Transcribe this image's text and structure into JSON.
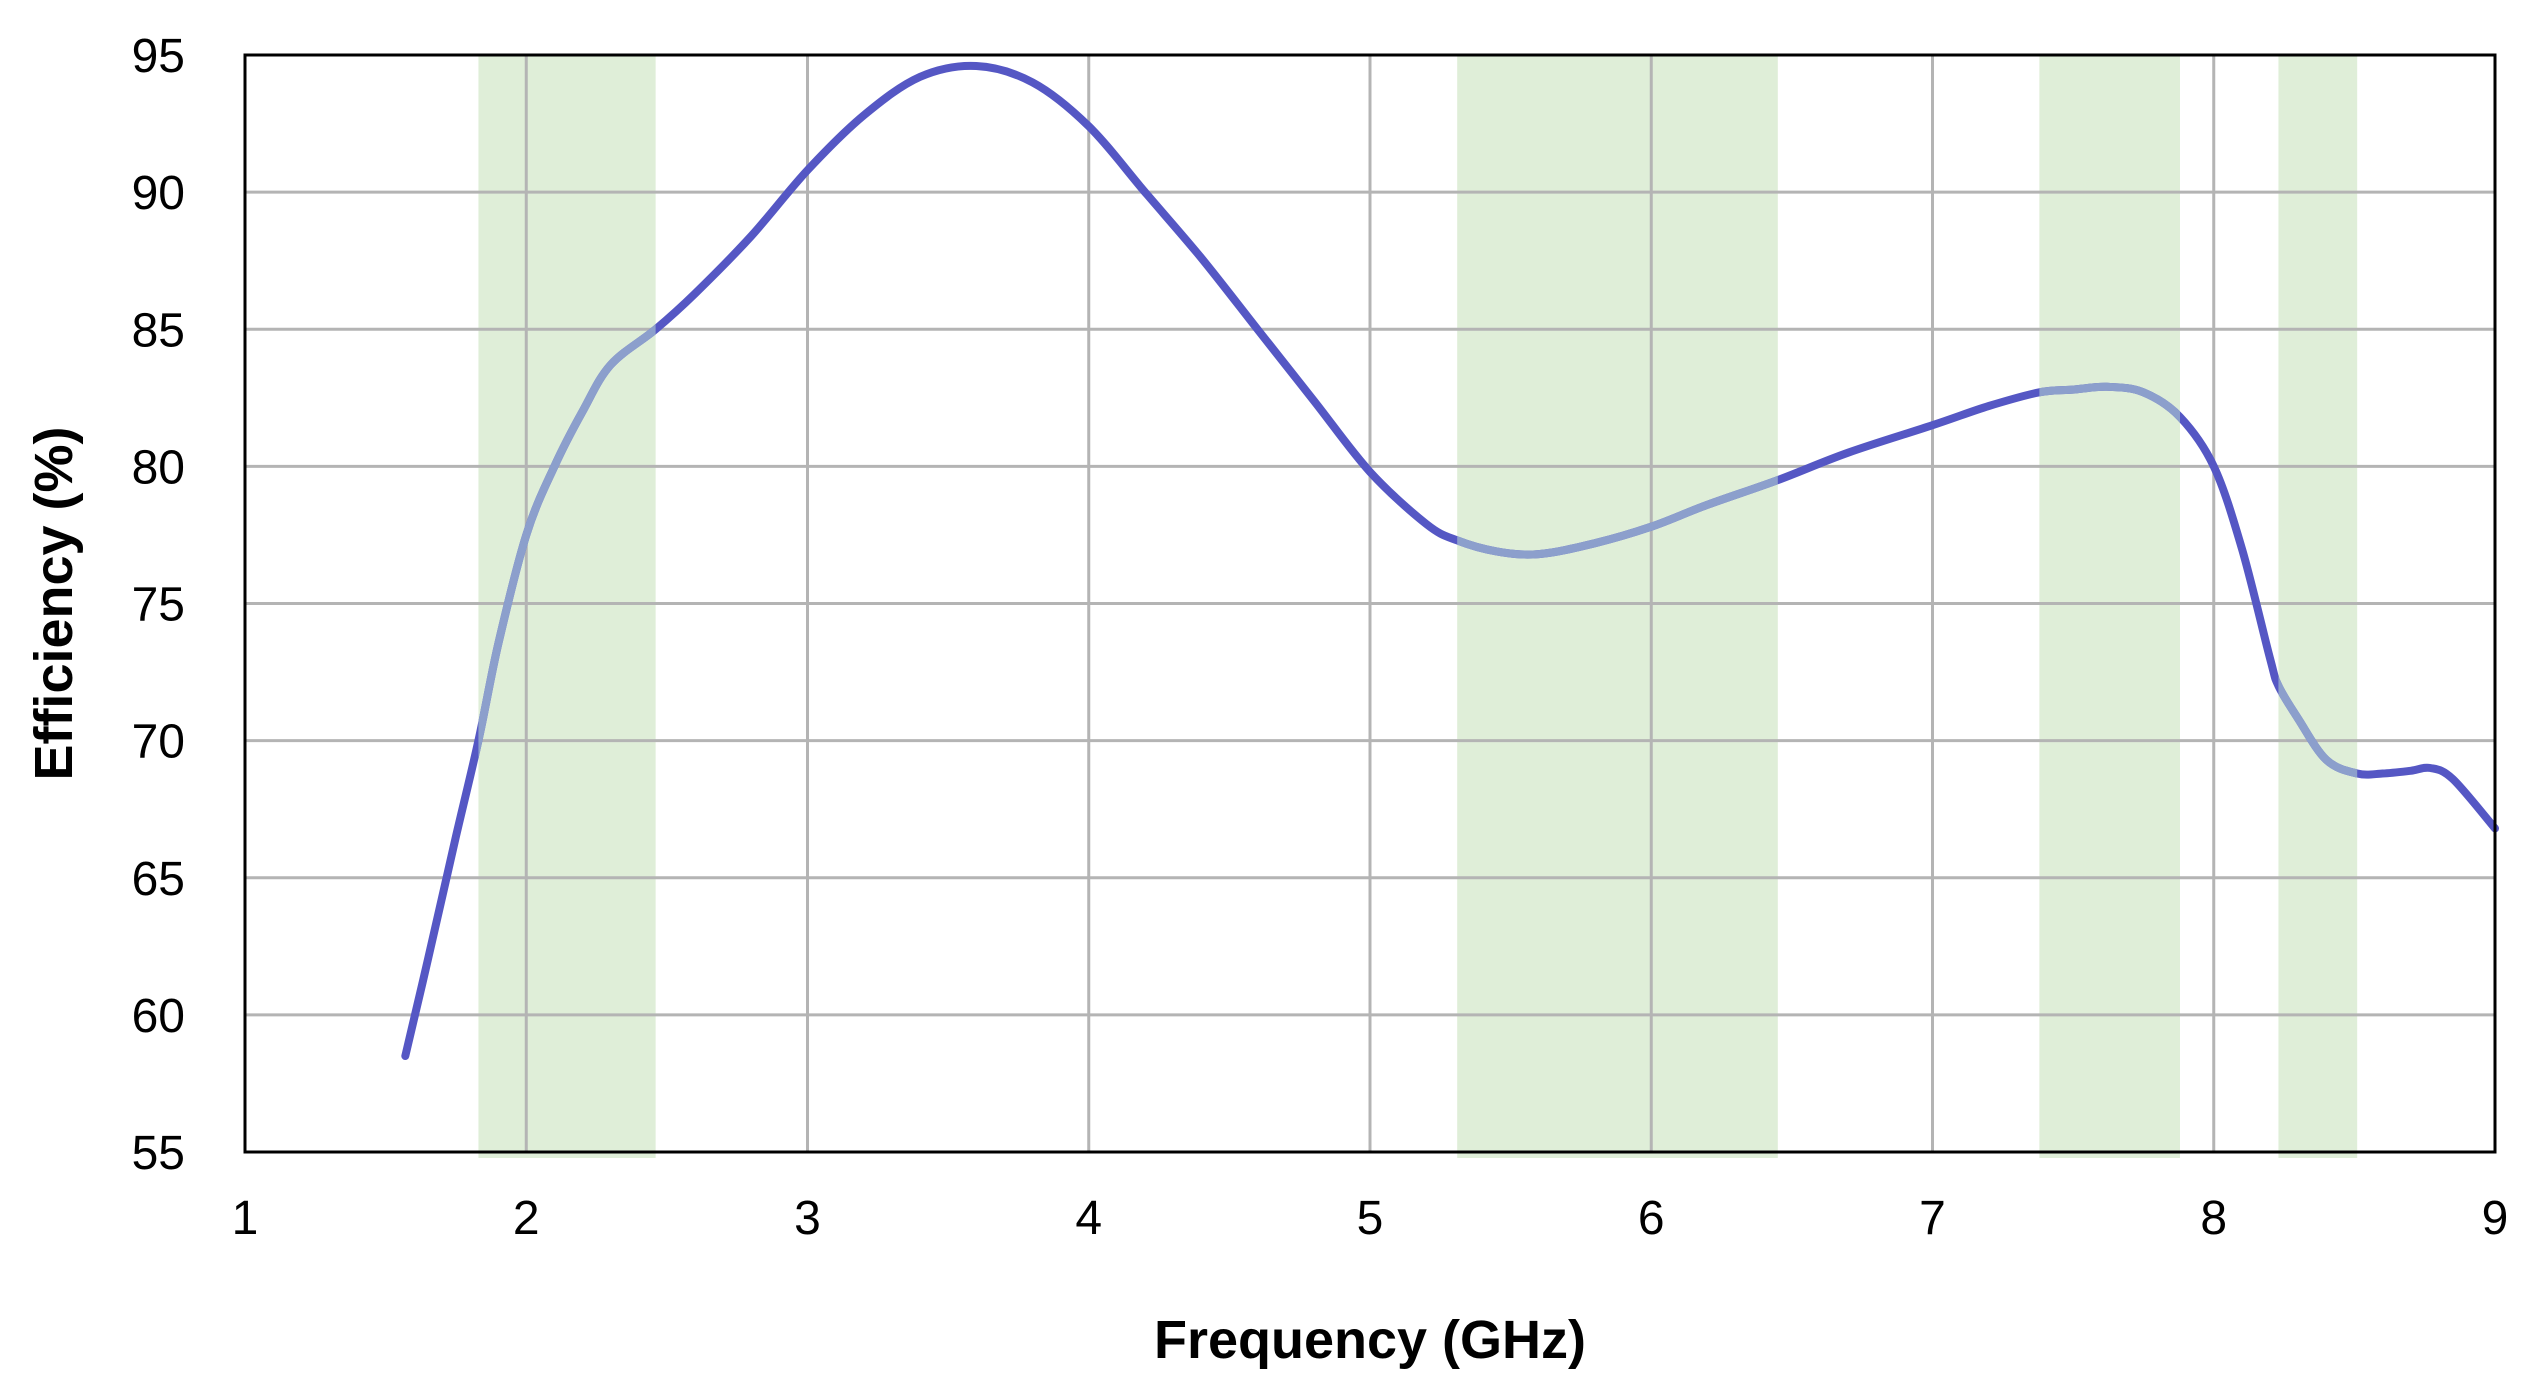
{
  "chart_data": {
    "type": "line",
    "title": "",
    "xlabel": "Frequency (GHz)",
    "ylabel": "Efficiency  (%)",
    "xlim": [
      1,
      9
    ],
    "ylim": [
      55,
      95
    ],
    "xticks": [
      1,
      2,
      3,
      4,
      5,
      6,
      7,
      8,
      9
    ],
    "yticks": [
      55,
      60,
      65,
      70,
      75,
      80,
      85,
      90,
      95
    ],
    "grid": true,
    "legend": "none",
    "highlight_bands": [
      {
        "from": 1.83,
        "to": 2.46
      },
      {
        "from": 5.31,
        "to": 6.45
      },
      {
        "from": 7.38,
        "to": 7.88
      },
      {
        "from": 8.23,
        "to": 8.51
      }
    ],
    "colors": {
      "line": "#5557c4",
      "line_in_band": "#8c9fcc",
      "band": "#dfeed8",
      "grid": "#b4b4b4",
      "frame": "#000000"
    },
    "series": [
      {
        "x": [
          1.57,
          1.65,
          1.75,
          1.83,
          1.9,
          2.0,
          2.1,
          2.2,
          2.3,
          2.46,
          2.6,
          2.8,
          3.0,
          3.2,
          3.4,
          3.6,
          3.8,
          4.0,
          4.2,
          4.4,
          4.6,
          4.8,
          5.0,
          5.2,
          5.31,
          5.45,
          5.6,
          5.8,
          6.0,
          6.2,
          6.45,
          6.7,
          7.0,
          7.2,
          7.38,
          7.5,
          7.62,
          7.75,
          7.88,
          8.0,
          8.1,
          8.2,
          8.23,
          8.3,
          8.4,
          8.51,
          8.6,
          8.7,
          8.77,
          8.85,
          9.0
        ],
        "y": [
          58.5,
          62.0,
          66.5,
          70.0,
          73.5,
          77.5,
          80.0,
          82.0,
          83.7,
          85.0,
          86.3,
          88.4,
          90.8,
          92.8,
          94.2,
          94.6,
          94.0,
          92.4,
          90.0,
          87.6,
          85.0,
          82.4,
          79.8,
          77.9,
          77.3,
          76.9,
          76.8,
          77.2,
          77.8,
          78.6,
          79.5,
          80.5,
          81.5,
          82.2,
          82.7,
          82.8,
          82.9,
          82.7,
          81.8,
          80.0,
          77.0,
          73.0,
          72.0,
          70.8,
          69.3,
          68.8,
          68.8,
          68.9,
          69.0,
          68.6,
          66.8
        ]
      }
    ]
  }
}
